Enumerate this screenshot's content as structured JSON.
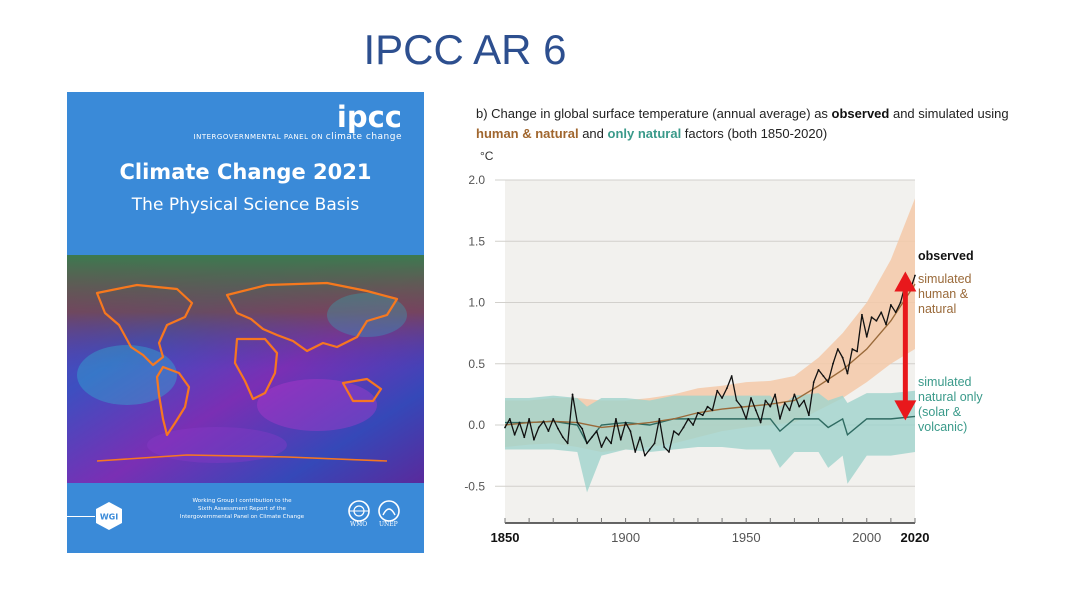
{
  "slide": {
    "title": "IPCC AR 6"
  },
  "cover": {
    "logo": "ipcc",
    "org_name_prefix": "INTERGOVERNMENTAL PANEL ON",
    "org_name_cc": "climate change",
    "title": "Climate Change 2021",
    "subtitle": "The Physical Science Basis",
    "badge": "WGI",
    "note_line1": "Working Group I contribution to the",
    "note_line2": "Sixth Assessment Report of the",
    "note_line3": "Intergovernmental Panel on Climate Change",
    "org1": "WMO",
    "org2": "UNEP",
    "colors": {
      "cover_blue": "#3a8ad8"
    }
  },
  "chart_data": {
    "type": "line",
    "title_prefix": "b) Change in global surface temperature (annual average) as ",
    "title_observed": "observed",
    "title_mid": " and simulated using ",
    "title_human": "human & natural",
    "title_and": " and ",
    "title_natural": "only natural",
    "title_suffix": " factors (both 1850-2020)",
    "ylabel": "°C",
    "ylim": [
      -0.8,
      2.0
    ],
    "xlim": [
      1850,
      2020
    ],
    "yticks": [
      "2.0",
      "1.5",
      "1.0",
      "0.5",
      "0.0",
      "-0.5"
    ],
    "ytick_values": [
      2.0,
      1.5,
      1.0,
      0.5,
      0.0,
      -0.5
    ],
    "xticks": [
      "1850",
      "1900",
      "1950",
      "2000",
      "2020"
    ],
    "xtick_values": [
      1850,
      1900,
      1950,
      2000,
      2020
    ],
    "grid": true,
    "colors": {
      "observed": "#111111",
      "human": "#9a6a3a",
      "human_band": "#f5c9a8",
      "natural": "#2f6b62",
      "natural_band": "#9fd3cc",
      "arrow": "#e8181c",
      "panel": "#f2f1ee"
    },
    "series": [
      {
        "name": "observed",
        "x": [
          1850,
          1852,
          1854,
          1856,
          1858,
          1860,
          1862,
          1864,
          1866,
          1868,
          1870,
          1872,
          1874,
          1876,
          1878,
          1880,
          1882,
          1884,
          1886,
          1888,
          1890,
          1892,
          1894,
          1896,
          1898,
          1900,
          1902,
          1904,
          1906,
          1908,
          1910,
          1912,
          1914,
          1916,
          1918,
          1920,
          1922,
          1924,
          1926,
          1928,
          1930,
          1932,
          1934,
          1936,
          1938,
          1940,
          1942,
          1944,
          1946,
          1948,
          1950,
          1952,
          1954,
          1956,
          1958,
          1960,
          1962,
          1964,
          1966,
          1968,
          1970,
          1972,
          1974,
          1976,
          1978,
          1980,
          1982,
          1984,
          1986,
          1988,
          1990,
          1992,
          1994,
          1996,
          1998,
          2000,
          2002,
          2004,
          2006,
          2008,
          2010,
          2012,
          2014,
          2016,
          2018,
          2020
        ],
        "values": [
          -0.02,
          0.05,
          -0.08,
          0.02,
          -0.1,
          0.05,
          -0.12,
          -0.02,
          0.03,
          -0.05,
          0.05,
          -0.03,
          -0.1,
          -0.15,
          0.25,
          0.02,
          -0.03,
          -0.15,
          -0.1,
          -0.05,
          -0.18,
          -0.1,
          -0.15,
          0.05,
          -0.12,
          0.02,
          -0.05,
          -0.22,
          -0.1,
          -0.25,
          -0.2,
          -0.15,
          0.05,
          -0.18,
          -0.22,
          -0.05,
          -0.08,
          -0.02,
          0.05,
          0.0,
          0.1,
          0.08,
          0.15,
          0.12,
          0.28,
          0.22,
          0.3,
          0.4,
          0.2,
          0.15,
          0.05,
          0.22,
          0.12,
          0.02,
          0.2,
          0.15,
          0.25,
          0.05,
          0.18,
          0.12,
          0.25,
          0.15,
          0.2,
          0.08,
          0.35,
          0.45,
          0.4,
          0.35,
          0.5,
          0.62,
          0.55,
          0.42,
          0.62,
          0.6,
          0.9,
          0.72,
          0.88,
          0.85,
          0.92,
          0.82,
          0.98,
          0.92,
          1.0,
          1.15,
          1.1,
          1.22
        ]
      },
      {
        "name": "simulated human & natural",
        "x": [
          1850,
          1860,
          1870,
          1880,
          1890,
          1900,
          1910,
          1920,
          1930,
          1940,
          1950,
          1960,
          1970,
          1980,
          1990,
          2000,
          2010,
          2020
        ],
        "values": [
          0.0,
          0.02,
          0.03,
          0.02,
          -0.02,
          0.0,
          0.02,
          0.05,
          0.1,
          0.13,
          0.15,
          0.17,
          0.2,
          0.32,
          0.45,
          0.62,
          0.85,
          1.15
        ],
        "band_low": [
          -0.18,
          -0.16,
          -0.15,
          -0.18,
          -0.22,
          -0.2,
          -0.18,
          -0.15,
          -0.1,
          -0.05,
          -0.02,
          0.0,
          0.02,
          0.12,
          0.22,
          0.35,
          0.5,
          0.62
        ],
        "band_high": [
          0.2,
          0.2,
          0.22,
          0.22,
          0.2,
          0.2,
          0.22,
          0.25,
          0.3,
          0.32,
          0.35,
          0.36,
          0.4,
          0.55,
          0.75,
          1.0,
          1.35,
          1.85
        ]
      },
      {
        "name": "simulated natural only (solar & volcanic)",
        "x": [
          1850,
          1860,
          1870,
          1880,
          1884,
          1890,
          1900,
          1910,
          1920,
          1930,
          1940,
          1950,
          1960,
          1964,
          1970,
          1980,
          1984,
          1990,
          1992,
          2000,
          2010,
          2020
        ],
        "values": [
          0.02,
          0.02,
          0.03,
          0.0,
          -0.15,
          0.0,
          0.02,
          0.0,
          0.05,
          0.05,
          0.05,
          0.05,
          0.05,
          -0.05,
          0.05,
          0.05,
          -0.02,
          0.05,
          -0.08,
          0.05,
          0.05,
          0.07
        ],
        "band_low": [
          -0.2,
          -0.2,
          -0.2,
          -0.22,
          -0.55,
          -0.25,
          -0.2,
          -0.22,
          -0.2,
          -0.18,
          -0.18,
          -0.2,
          -0.2,
          -0.35,
          -0.22,
          -0.22,
          -0.35,
          -0.25,
          -0.48,
          -0.25,
          -0.25,
          -0.22
        ],
        "band_high": [
          0.22,
          0.22,
          0.24,
          0.22,
          0.15,
          0.22,
          0.22,
          0.2,
          0.24,
          0.24,
          0.24,
          0.24,
          0.24,
          0.15,
          0.24,
          0.26,
          0.2,
          0.24,
          0.18,
          0.26,
          0.26,
          0.28
        ]
      }
    ],
    "labels": {
      "observed": "observed",
      "human_1": "simulated",
      "human_2": "human &",
      "human_3": "natural",
      "natural_1": "simulated",
      "natural_2": "natural only",
      "natural_3": "(solar &",
      "natural_4": "volcanic)"
    },
    "arrow": {
      "x": 2016,
      "from": 1.22,
      "to": 0.07
    }
  }
}
